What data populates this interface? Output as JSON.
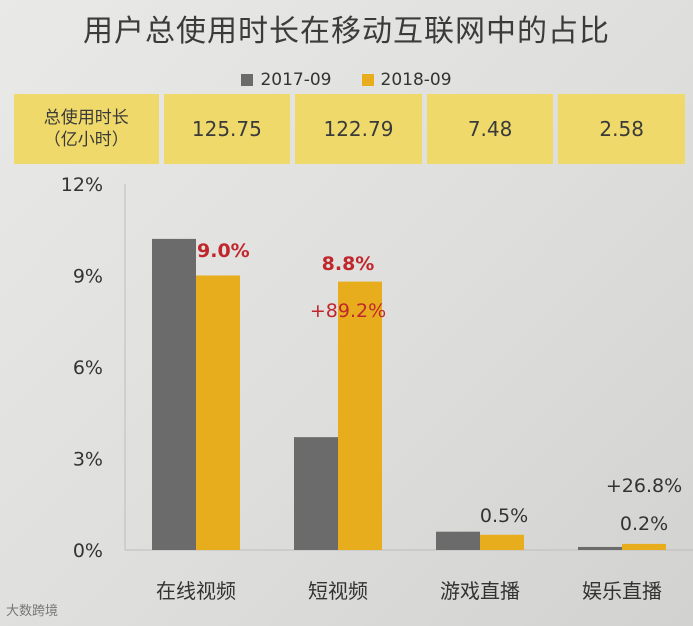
{
  "title": "用户总使用时长在移动互联网中的占比",
  "table": {
    "header_line1": "总使用时长",
    "header_line2": "（亿小时）",
    "values": [
      "125.75",
      "122.79",
      "7.48",
      "2.58"
    ]
  },
  "watermark": "大数跨境",
  "colors": {
    "series_2017": "#6b6b6b",
    "series_2018": "#e7ad1d",
    "label_red": "#c0272d"
  },
  "chart_data": {
    "type": "bar",
    "categories": [
      "在线视频",
      "短视频",
      "游戏直播",
      "娱乐直播"
    ],
    "series": [
      {
        "name": "2017-09",
        "values": [
          10.2,
          3.7,
          0.6,
          0.1
        ]
      },
      {
        "name": "2018-09",
        "values": [
          9.0,
          8.8,
          0.5,
          0.2
        ]
      }
    ],
    "data_labels": [
      "9.0%",
      "8.8%",
      "0.5%",
      "0.2%"
    ],
    "growth_labels": [
      "",
      "+89.2%",
      "",
      "+26.8%"
    ],
    "yticks": [
      "0%",
      "3%",
      "6%",
      "9%",
      "12%"
    ],
    "ylim": [
      0,
      12
    ],
    "legend_position": "top"
  }
}
